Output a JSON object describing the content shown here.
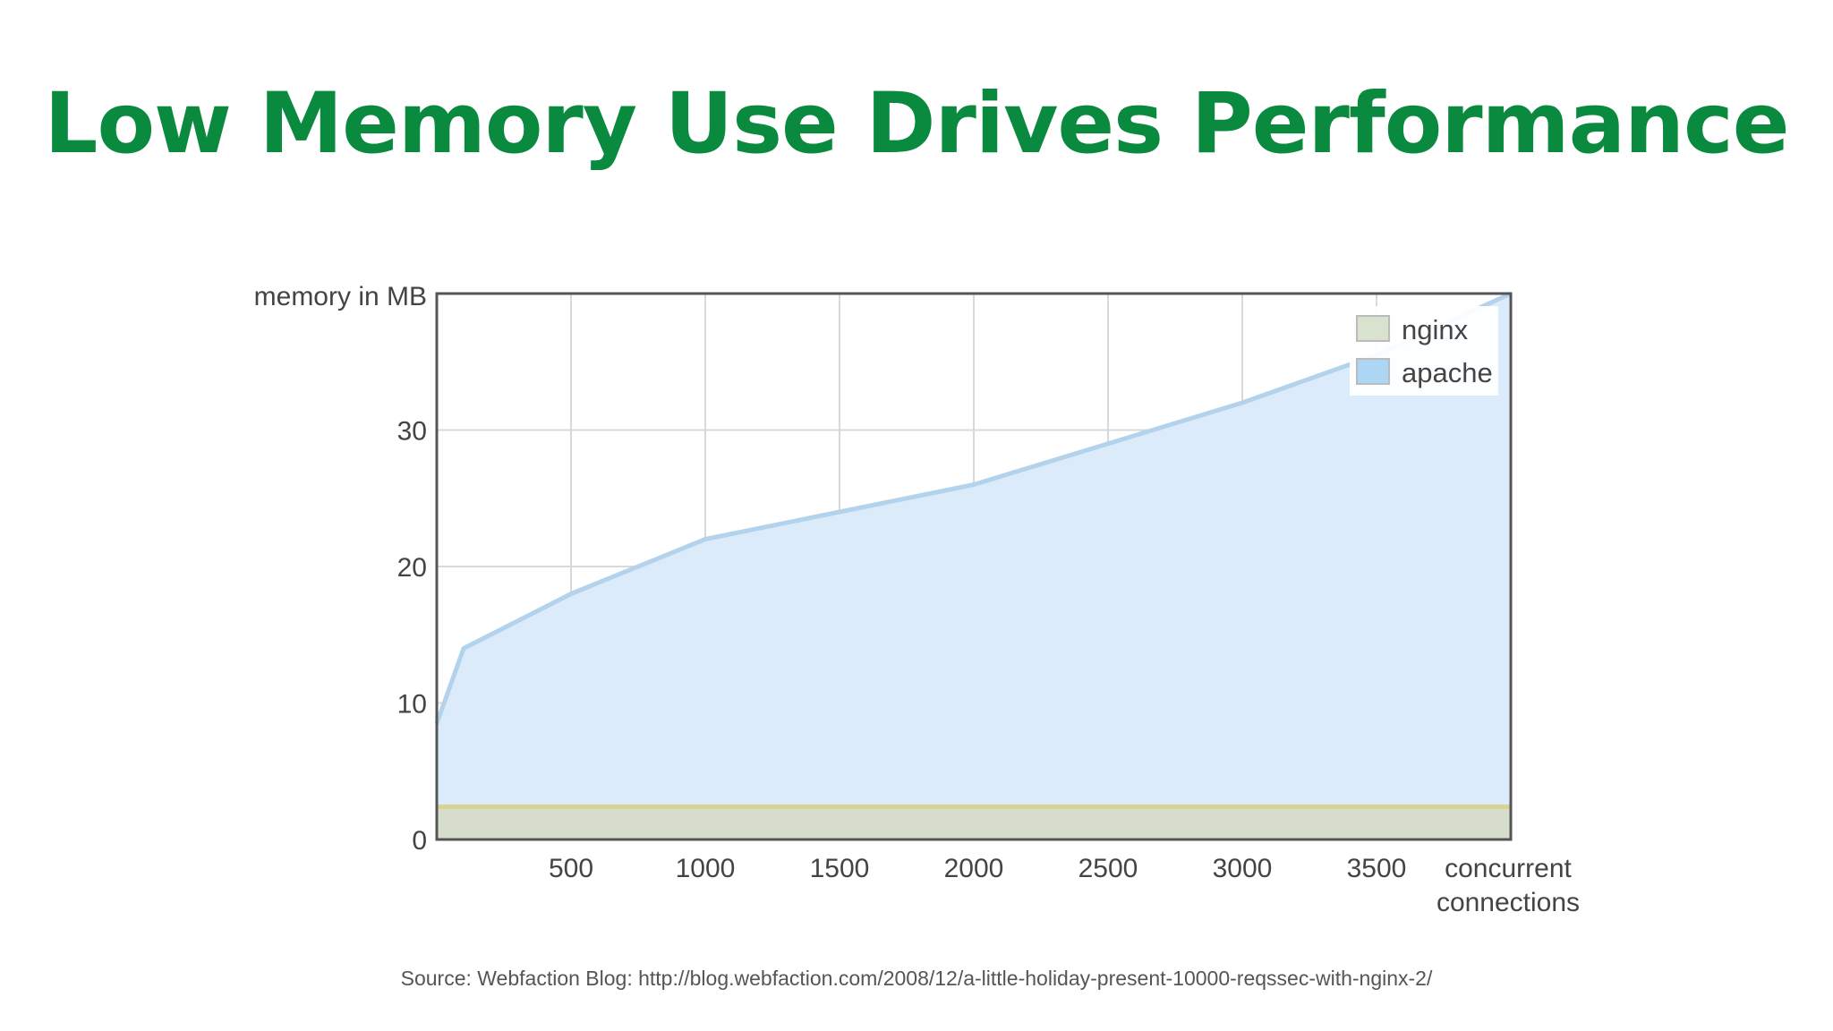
{
  "slide": {
    "title": "Low Memory Use Drives Performance",
    "source": "Source: Webfaction Blog: http://blog.webfaction.com/2008/12/a-little-holiday-present-10000-reqssec-with-nginx-2/"
  },
  "colors": {
    "title": "#0a8a3e",
    "apache_fill": "#dcebfa",
    "apache_line": "#b3d2ec",
    "apache_legend": "#add6f5",
    "nginx_fill": "#d7dfcc",
    "nginx_line": "#d6d493",
    "nginx_legend": "#d9e1cf",
    "grid": "#d9d9d9",
    "frame": "#555555"
  },
  "chart_data": {
    "type": "area",
    "ylabel": "memory in MB",
    "xlabel": "concurrent connections",
    "xlim": [
      0,
      4000
    ],
    "ylim": [
      0,
      40
    ],
    "x_ticks": [
      500,
      1000,
      1500,
      2000,
      2500,
      3000,
      3500
    ],
    "y_ticks": [
      0,
      10,
      20,
      30
    ],
    "grid": true,
    "legend_position": "top-right",
    "series": [
      {
        "name": "nginx",
        "x": [
          0,
          4000
        ],
        "y": [
          2.4,
          2.4
        ]
      },
      {
        "name": "apache",
        "x": [
          0,
          100,
          500,
          1000,
          1500,
          2000,
          2500,
          3000,
          3500,
          4000
        ],
        "y": [
          8.5,
          14,
          18,
          22,
          24,
          26,
          29,
          32,
          35.5,
          40
        ]
      }
    ]
  }
}
